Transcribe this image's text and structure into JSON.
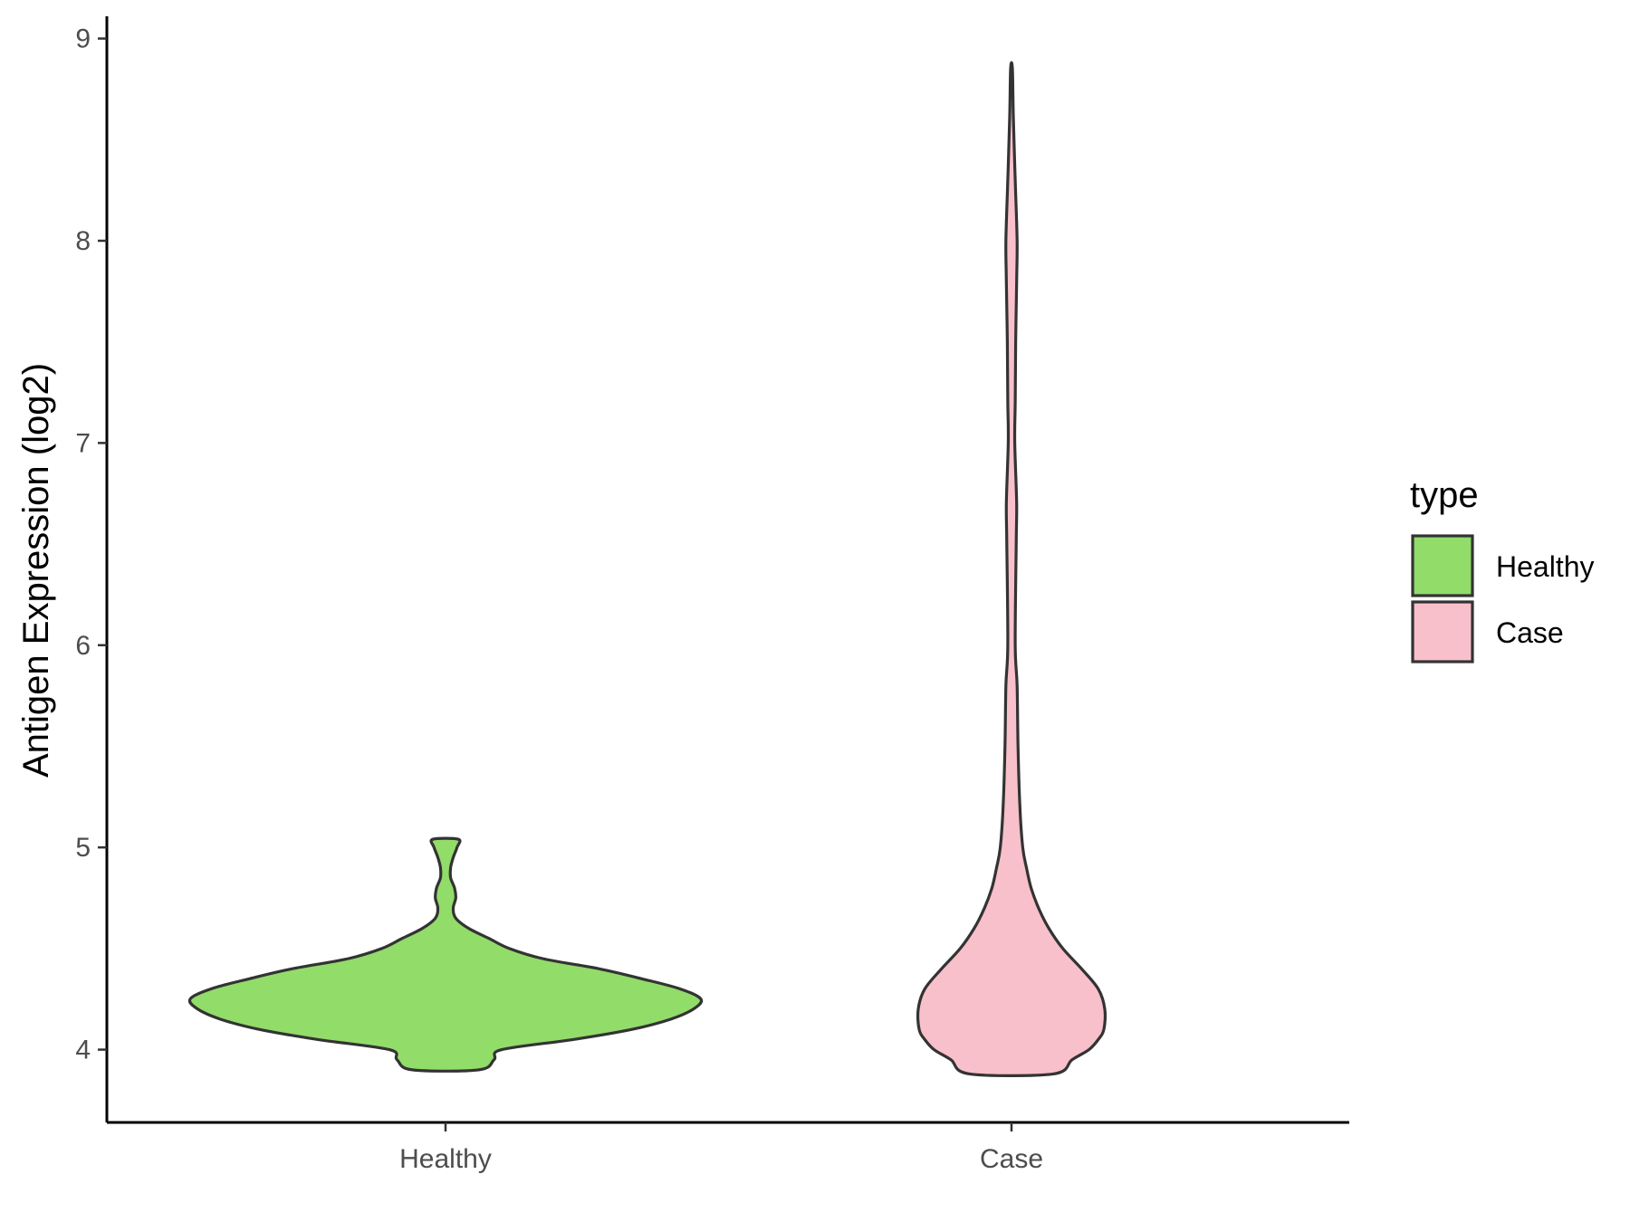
{
  "chart_data": {
    "type": "violin",
    "xlabel": "",
    "ylabel": "Antigen Expression (log2)",
    "categories": [
      "Healthy",
      "Case"
    ],
    "ylim": [
      3.64,
      9.11
    ],
    "yticks": [
      4,
      5,
      6,
      7,
      8,
      9
    ],
    "grid": false,
    "legend": {
      "title": "type",
      "position": "right",
      "items": [
        {
          "label": "Healthy",
          "color": "#92dc6a"
        },
        {
          "label": "Case",
          "color": "#f8c0cb"
        }
      ]
    },
    "series": [
      {
        "category": "Healthy",
        "color": "#92dc6a",
        "density_profile": [
          [
            3.9,
            0.13
          ],
          [
            3.95,
            0.19
          ],
          [
            4.0,
            0.22
          ],
          [
            4.05,
            0.5
          ],
          [
            4.1,
            0.73
          ],
          [
            4.15,
            0.88
          ],
          [
            4.2,
            0.97
          ],
          [
            4.25,
            1.0
          ],
          [
            4.3,
            0.92
          ],
          [
            4.35,
            0.77
          ],
          [
            4.4,
            0.6
          ],
          [
            4.45,
            0.38
          ],
          [
            4.5,
            0.25
          ],
          [
            4.55,
            0.17
          ],
          [
            4.6,
            0.09
          ],
          [
            4.65,
            0.04
          ],
          [
            4.7,
            0.03
          ],
          [
            4.75,
            0.04
          ],
          [
            4.8,
            0.035
          ],
          [
            4.85,
            0.02
          ],
          [
            4.9,
            0.02
          ],
          [
            4.95,
            0.03
          ],
          [
            5.0,
            0.045
          ],
          [
            5.04,
            0.05
          ]
        ]
      },
      {
        "category": "Case",
        "color": "#f8c0cb",
        "density_profile": [
          [
            3.88,
            0.45
          ],
          [
            3.95,
            0.65
          ],
          [
            4.0,
            0.83
          ],
          [
            4.05,
            0.93
          ],
          [
            4.1,
            0.99
          ],
          [
            4.2,
            1.0
          ],
          [
            4.3,
            0.93
          ],
          [
            4.4,
            0.75
          ],
          [
            4.5,
            0.55
          ],
          [
            4.6,
            0.4
          ],
          [
            4.7,
            0.29
          ],
          [
            4.8,
            0.21
          ],
          [
            4.9,
            0.16
          ],
          [
            5.0,
            0.12
          ],
          [
            5.2,
            0.09
          ],
          [
            5.5,
            0.07
          ],
          [
            5.8,
            0.06
          ],
          [
            6.0,
            0.04
          ],
          [
            6.5,
            0.05
          ],
          [
            6.7,
            0.055
          ],
          [
            7.0,
            0.035
          ],
          [
            7.2,
            0.04
          ],
          [
            7.5,
            0.045
          ],
          [
            7.8,
            0.055
          ],
          [
            8.0,
            0.06
          ],
          [
            8.3,
            0.04
          ],
          [
            8.6,
            0.02
          ],
          [
            8.85,
            0.01
          ]
        ]
      }
    ]
  }
}
